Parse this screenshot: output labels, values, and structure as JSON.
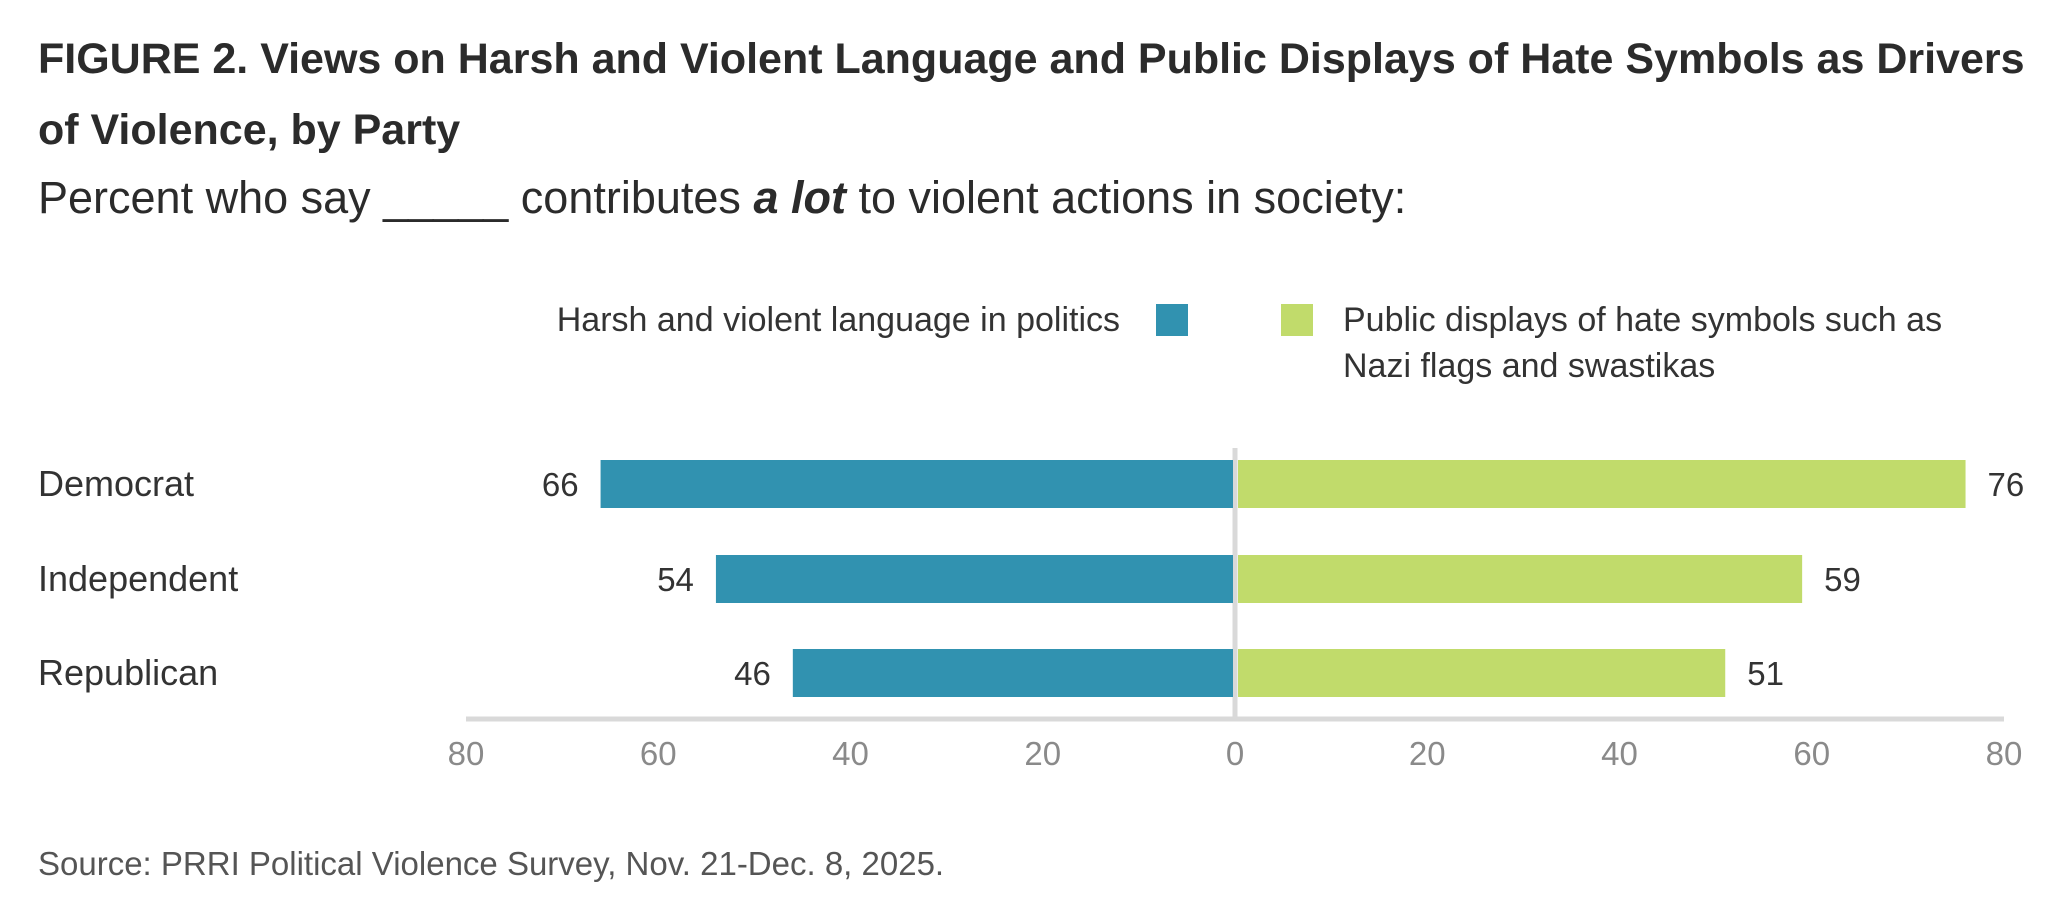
{
  "title": "FIGURE 2.  Views on Harsh and Violent Language and Public Displays of Hate Symbols as Drivers of Violence, by Party",
  "subtitle": {
    "before": "Percent who say _____ contributes ",
    "emphasis": "a lot",
    "after": " to violent actions in society:"
  },
  "source": "Source: PRRI Political Violence Survey, Nov. 21-Dec. 8, 2025.",
  "chart_data": {
    "type": "bar",
    "orientation": "horizontal-diverging",
    "categories": [
      "Democrat",
      "Independent",
      "Republican"
    ],
    "series": [
      {
        "name": "Harsh and violent language in politics",
        "color": "#3192b0",
        "side": "left",
        "values": [
          66,
          54,
          46
        ]
      },
      {
        "name": "Public displays of hate symbols such as Nazi flags and swastikas",
        "color": "#c1db6b",
        "side": "right",
        "values": [
          76,
          59,
          51
        ]
      }
    ],
    "legend": {
      "left_label": "Harsh and violent language in politics",
      "right_label_lines": [
        "Public displays of hate symbols such as",
        "Nazi flags and swastikas"
      ]
    },
    "xlim": [
      -80,
      80
    ],
    "xticks": [
      80,
      60,
      40,
      20,
      0,
      20,
      40,
      60,
      80
    ],
    "xlabel": "",
    "ylabel": "",
    "grid": false
  }
}
